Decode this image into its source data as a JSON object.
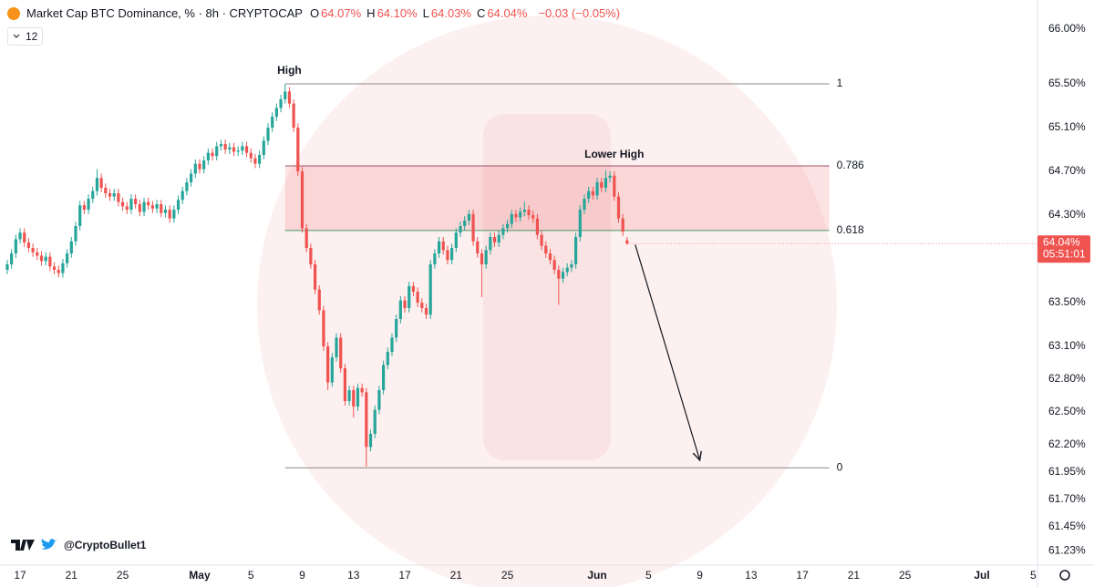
{
  "chart_data": {
    "type": "candlestick",
    "title": "Market Cap BTC Dominance, % · 8h · CRYPTOCAP",
    "ohlc_legend": [
      {
        "key": "O",
        "value": "64.07%"
      },
      {
        "key": "H",
        "value": "64.10%"
      },
      {
        "key": "L",
        "value": "64.03%"
      },
      {
        "key": "C",
        "value": "64.04%"
      }
    ],
    "change": "−0.03 (−0.05%)",
    "indicator": "12",
    "credit": "@CryptoBullet1",
    "up_color": "#26a69a",
    "down_color": "#ef5350",
    "ohlc": [
      [
        63.8,
        63.89,
        63.76,
        63.85
      ],
      [
        63.85,
        63.99,
        63.81,
        63.95
      ],
      [
        63.95,
        64.12,
        63.91,
        64.08
      ],
      [
        64.08,
        64.18,
        64.04,
        64.14
      ],
      [
        64.14,
        64.18,
        64.01,
        64.05
      ],
      [
        64.05,
        64.09,
        63.96,
        64.0
      ],
      [
        64.0,
        64.04,
        63.92,
        63.96
      ],
      [
        63.96,
        64.0,
        63.89,
        63.93
      ],
      [
        63.93,
        63.97,
        63.84,
        63.88
      ],
      [
        63.88,
        63.96,
        63.84,
        63.92
      ],
      [
        63.92,
        63.96,
        63.79,
        63.83
      ],
      [
        63.83,
        63.87,
        63.76,
        63.8
      ],
      [
        63.8,
        63.84,
        63.73,
        63.77
      ],
      [
        63.77,
        63.9,
        63.73,
        63.86
      ],
      [
        63.86,
        63.99,
        63.82,
        63.95
      ],
      [
        63.95,
        64.1,
        63.91,
        64.06
      ],
      [
        64.06,
        64.24,
        64.02,
        64.2
      ],
      [
        64.2,
        64.43,
        64.16,
        64.39
      ],
      [
        64.39,
        64.43,
        64.31,
        64.35
      ],
      [
        64.35,
        64.49,
        64.31,
        64.45
      ],
      [
        64.45,
        64.56,
        64.41,
        64.52
      ],
      [
        64.52,
        64.72,
        64.48,
        64.64
      ],
      [
        64.64,
        64.68,
        64.51,
        64.55
      ],
      [
        64.55,
        64.59,
        64.46,
        64.5
      ],
      [
        64.5,
        64.54,
        64.43,
        64.47
      ],
      [
        64.47,
        64.54,
        64.43,
        64.5
      ],
      [
        64.5,
        64.54,
        64.38,
        64.42
      ],
      [
        64.42,
        64.46,
        64.34,
        64.38
      ],
      [
        64.38,
        64.42,
        64.31,
        64.35
      ],
      [
        64.35,
        64.49,
        64.31,
        64.45
      ],
      [
        64.45,
        64.49,
        64.36,
        64.4
      ],
      [
        64.4,
        64.44,
        64.29,
        64.33
      ],
      [
        64.33,
        64.46,
        64.29,
        64.42
      ],
      [
        64.42,
        64.46,
        64.35,
        64.39
      ],
      [
        64.39,
        64.43,
        64.32,
        64.36
      ],
      [
        64.36,
        64.44,
        64.32,
        64.4
      ],
      [
        64.4,
        64.44,
        64.28,
        64.32
      ],
      [
        64.32,
        64.39,
        64.28,
        64.35
      ],
      [
        64.35,
        64.39,
        64.23,
        64.27
      ],
      [
        64.27,
        64.39,
        64.23,
        64.35
      ],
      [
        64.35,
        64.48,
        64.31,
        64.44
      ],
      [
        64.44,
        64.56,
        64.4,
        64.52
      ],
      [
        64.52,
        64.64,
        64.48,
        64.6
      ],
      [
        64.6,
        64.72,
        64.56,
        64.68
      ],
      [
        64.68,
        64.81,
        64.64,
        64.77
      ],
      [
        64.77,
        64.81,
        64.68,
        64.72
      ],
      [
        64.72,
        64.84,
        64.68,
        64.8
      ],
      [
        64.8,
        64.91,
        64.76,
        64.87
      ],
      [
        64.87,
        64.91,
        64.8,
        64.84
      ],
      [
        64.84,
        64.97,
        64.8,
        64.93
      ],
      [
        64.93,
        64.99,
        64.89,
        64.95
      ],
      [
        64.95,
        64.99,
        64.86,
        64.9
      ],
      [
        64.9,
        64.96,
        64.86,
        64.92
      ],
      [
        64.92,
        64.96,
        64.84,
        64.88
      ],
      [
        64.88,
        64.93,
        64.84,
        64.89
      ],
      [
        64.89,
        64.97,
        64.85,
        64.93
      ],
      [
        64.93,
        64.97,
        64.83,
        64.87
      ],
      [
        64.87,
        64.91,
        64.78,
        64.82
      ],
      [
        64.82,
        64.86,
        64.73,
        64.77
      ],
      [
        64.77,
        64.89,
        64.73,
        64.85
      ],
      [
        64.85,
        65.02,
        64.81,
        64.98
      ],
      [
        64.98,
        65.14,
        64.94,
        65.1
      ],
      [
        65.1,
        65.24,
        65.06,
        65.2
      ],
      [
        65.2,
        65.32,
        65.16,
        65.28
      ],
      [
        65.28,
        65.4,
        65.24,
        65.36
      ],
      [
        65.36,
        65.5,
        65.32,
        65.43
      ],
      [
        65.43,
        65.47,
        65.28,
        65.32
      ],
      [
        65.32,
        65.36,
        65.06,
        65.1
      ],
      [
        65.1,
        65.14,
        64.66,
        64.7
      ],
      [
        64.7,
        64.74,
        64.14,
        64.18
      ],
      [
        64.18,
        64.22,
        63.96,
        64.0
      ],
      [
        64.0,
        64.04,
        63.81,
        63.85
      ],
      [
        63.85,
        63.89,
        63.58,
        63.62
      ],
      [
        63.62,
        63.66,
        63.39,
        63.43
      ],
      [
        63.43,
        63.47,
        63.06,
        63.1
      ],
      [
        63.1,
        63.14,
        62.7,
        62.77
      ],
      [
        62.77,
        63.04,
        62.73,
        63.0
      ],
      [
        63.0,
        63.22,
        62.96,
        63.18
      ],
      [
        63.18,
        63.22,
        62.86,
        62.9
      ],
      [
        62.9,
        62.94,
        62.56,
        62.6
      ],
      [
        62.6,
        62.74,
        62.56,
        62.7
      ],
      [
        62.7,
        62.74,
        62.45,
        62.55
      ],
      [
        62.55,
        62.76,
        62.51,
        62.72
      ],
      [
        62.72,
        62.76,
        62.64,
        62.68
      ],
      [
        62.68,
        62.72,
        62.0,
        62.18
      ],
      [
        62.18,
        62.34,
        62.14,
        62.3
      ],
      [
        62.3,
        62.56,
        62.26,
        62.52
      ],
      [
        62.52,
        62.74,
        62.48,
        62.7
      ],
      [
        62.7,
        62.97,
        62.66,
        62.93
      ],
      [
        62.93,
        63.09,
        62.89,
        63.05
      ],
      [
        63.05,
        63.22,
        63.01,
        63.18
      ],
      [
        63.18,
        63.39,
        63.14,
        63.35
      ],
      [
        63.35,
        63.56,
        63.31,
        63.52
      ],
      [
        63.52,
        63.56,
        63.41,
        63.45
      ],
      [
        63.45,
        63.69,
        63.41,
        63.65
      ],
      [
        63.65,
        63.69,
        63.56,
        63.6
      ],
      [
        63.6,
        63.64,
        63.46,
        63.5
      ],
      [
        63.5,
        63.54,
        63.41,
        63.45
      ],
      [
        63.45,
        63.49,
        63.35,
        63.39
      ],
      [
        63.39,
        63.89,
        63.35,
        63.85
      ],
      [
        63.85,
        63.99,
        63.81,
        63.95
      ],
      [
        63.95,
        64.1,
        63.91,
        64.06
      ],
      [
        64.06,
        64.1,
        63.94,
        63.98
      ],
      [
        63.98,
        64.02,
        63.85,
        63.89
      ],
      [
        63.89,
        64.04,
        63.85,
        64.0
      ],
      [
        64.0,
        64.18,
        63.96,
        64.14
      ],
      [
        64.14,
        64.24,
        64.1,
        64.2
      ],
      [
        64.2,
        64.29,
        64.16,
        64.25
      ],
      [
        64.25,
        64.35,
        64.21,
        64.31
      ],
      [
        64.31,
        64.35,
        64.02,
        64.06
      ],
      [
        64.06,
        64.1,
        63.91,
        63.95
      ],
      [
        63.95,
        63.99,
        63.55,
        63.85
      ],
      [
        63.85,
        64.02,
        63.81,
        63.98
      ],
      [
        63.98,
        64.14,
        63.94,
        64.1
      ],
      [
        64.1,
        64.14,
        64.01,
        64.05
      ],
      [
        64.05,
        64.16,
        64.01,
        64.12
      ],
      [
        64.12,
        64.22,
        64.08,
        64.18
      ],
      [
        64.18,
        64.26,
        64.14,
        64.22
      ],
      [
        64.22,
        64.35,
        64.18,
        64.31
      ],
      [
        64.31,
        64.35,
        64.24,
        64.28
      ],
      [
        64.28,
        64.37,
        64.24,
        64.33
      ],
      [
        64.33,
        64.42,
        64.29,
        64.35
      ],
      [
        64.35,
        64.39,
        64.26,
        64.3
      ],
      [
        64.3,
        64.34,
        64.23,
        64.27
      ],
      [
        64.27,
        64.31,
        64.08,
        64.12
      ],
      [
        64.12,
        64.16,
        63.98,
        64.02
      ],
      [
        64.02,
        64.06,
        63.91,
        63.95
      ],
      [
        63.95,
        63.99,
        63.85,
        63.89
      ],
      [
        63.89,
        63.93,
        63.76,
        63.8
      ],
      [
        63.8,
        63.84,
        63.48,
        63.72
      ],
      [
        63.72,
        63.82,
        63.68,
        63.78
      ],
      [
        63.78,
        63.86,
        63.74,
        63.82
      ],
      [
        63.82,
        63.89,
        63.78,
        63.85
      ],
      [
        63.85,
        64.14,
        63.81,
        64.1
      ],
      [
        64.1,
        64.39,
        64.06,
        64.35
      ],
      [
        64.35,
        64.49,
        64.31,
        64.45
      ],
      [
        64.45,
        64.56,
        64.41,
        64.52
      ],
      [
        64.52,
        64.56,
        64.44,
        64.48
      ],
      [
        64.48,
        64.64,
        64.44,
        64.6
      ],
      [
        64.6,
        64.64,
        64.51,
        64.55
      ],
      [
        64.55,
        64.71,
        64.51,
        64.64
      ],
      [
        64.64,
        64.7,
        64.6,
        64.66
      ],
      [
        64.66,
        64.7,
        64.43,
        64.47
      ],
      [
        64.47,
        64.51,
        64.23,
        64.27
      ],
      [
        64.27,
        64.31,
        64.11,
        64.15
      ],
      [
        64.07,
        64.1,
        64.03,
        64.04
      ]
    ],
    "xlim": [
      -1.7,
      241.0
    ],
    "ylim": [
      61.1,
      66.267
    ],
    "xticks": [
      {
        "value": 3,
        "label": "17"
      },
      {
        "value": 15,
        "label": "21"
      },
      {
        "value": 27,
        "label": "25"
      },
      {
        "value": 45,
        "label": "May"
      },
      {
        "value": 57,
        "label": "5"
      },
      {
        "value": 69,
        "label": "9"
      },
      {
        "value": 81,
        "label": "13"
      },
      {
        "value": 93,
        "label": "17"
      },
      {
        "value": 105,
        "label": "21"
      },
      {
        "value": 117,
        "label": "25"
      },
      {
        "value": 138,
        "label": "Jun"
      },
      {
        "value": 150,
        "label": "5"
      },
      {
        "value": 162,
        "label": "9"
      },
      {
        "value": 174,
        "label": "13"
      },
      {
        "value": 186,
        "label": "17"
      },
      {
        "value": 198,
        "label": "21"
      },
      {
        "value": 210,
        "label": "25"
      },
      {
        "value": 228,
        "label": "Jul"
      },
      {
        "value": 240,
        "label": "5"
      }
    ],
    "yticks": [
      {
        "value": 66.0,
        "label": "66.00%"
      },
      {
        "value": 65.5,
        "label": "65.50%"
      },
      {
        "value": 65.1,
        "label": "65.10%"
      },
      {
        "value": 64.7,
        "label": "64.70%"
      },
      {
        "value": 64.3,
        "label": "64.30%"
      },
      {
        "value": 63.5,
        "label": "63.50%"
      },
      {
        "value": 63.1,
        "label": "63.10%"
      },
      {
        "value": 62.8,
        "label": "62.80%"
      },
      {
        "value": 62.5,
        "label": "62.50%"
      },
      {
        "value": 62.2,
        "label": "62.20%"
      },
      {
        "value": 61.95,
        "label": "61.95%"
      },
      {
        "value": 61.7,
        "label": "61.70%"
      },
      {
        "value": 61.45,
        "label": "61.45%"
      },
      {
        "value": 61.23,
        "label": "61.23%"
      }
    ],
    "last_price": {
      "label": "64.04%",
      "timer": "05:51:01"
    },
    "fib": {
      "levels": [
        1,
        0.786,
        0.618,
        0
      ],
      "prices": [
        65.5,
        64.75,
        64.16,
        61.99
      ],
      "colors": [
        "#8a8a8a",
        "#a0506a",
        "#4a9a6a",
        "#8a8a8a"
      ],
      "start": 65,
      "end": 192.3,
      "zone_color": "rgba(239,83,80,0.16)"
    },
    "annotations": [
      {
        "text": "High",
        "index": 66,
        "price": 65.62
      },
      {
        "text": "Lower High",
        "index": 142,
        "price": 64.85
      }
    ],
    "arrow": {
      "from": [
        146.9,
        64.03
      ],
      "to": [
        162,
        62.06
      ]
    }
  }
}
